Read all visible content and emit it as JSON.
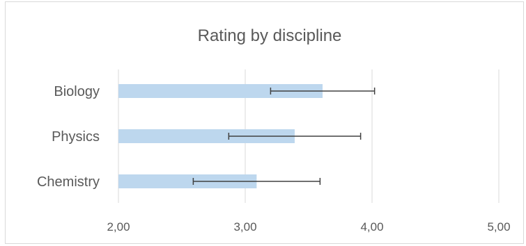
{
  "chart_data": {
    "type": "bar",
    "orientation": "horizontal",
    "title": "Rating by discipline",
    "categories": [
      "Biology",
      "Physics",
      "Chemistry"
    ],
    "values": [
      3.61,
      3.39,
      3.09
    ],
    "error_low": [
      3.2,
      2.87,
      2.59
    ],
    "error_high": [
      4.02,
      3.91,
      3.59
    ],
    "xlim": [
      2.0,
      5.0
    ],
    "x_ticks": [
      2.0,
      3.0,
      4.0,
      5.0
    ],
    "x_tick_labels": [
      "2,00",
      "3,00",
      "4,00",
      "5,00"
    ],
    "xlabel": "",
    "ylabel": "",
    "grid": "vertical",
    "legend": "none",
    "colors": {
      "bar": "#bdd7ee",
      "error_bar": "#404040",
      "grid": "#d9d9d9",
      "text": "#595959"
    }
  }
}
